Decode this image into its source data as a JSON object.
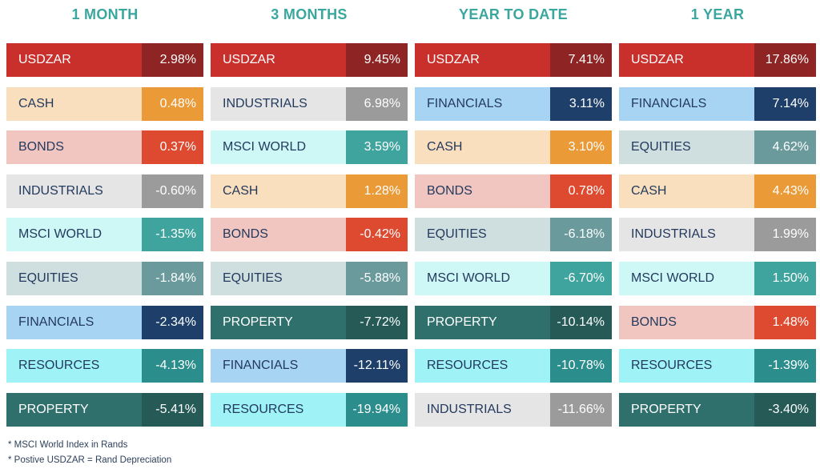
{
  "chart_data": {
    "type": "table",
    "palette": {
      "USDZAR": {
        "label_bg": "#c9302c",
        "label_fg": "#ffffff",
        "value_bg": "#8e2424",
        "value_fg": "#ffffff"
      },
      "CASH": {
        "label_bg": "#f9dfbd",
        "label_fg": "#233a5e",
        "value_bg": "#ea9a37",
        "value_fg": "#ffffff"
      },
      "BONDS": {
        "label_bg": "#f1c6c1",
        "label_fg": "#233a5e",
        "value_bg": "#de4a30",
        "value_fg": "#ffffff"
      },
      "INDUSTRIALS": {
        "label_bg": "#e5e5e5",
        "label_fg": "#233a5e",
        "value_bg": "#9b9b9b",
        "value_fg": "#ffffff"
      },
      "MSCI WORLD": {
        "label_bg": "#cef8f6",
        "label_fg": "#233a5e",
        "value_bg": "#3fa39e",
        "value_fg": "#ffffff"
      },
      "EQUITIES": {
        "label_bg": "#cfdfe0",
        "label_fg": "#233a5e",
        "value_bg": "#6a9a9c",
        "value_fg": "#ffffff"
      },
      "FINANCIALS": {
        "label_bg": "#a8d4f4",
        "label_fg": "#233a5e",
        "value_bg": "#1d3f6a",
        "value_fg": "#ffffff"
      },
      "RESOURCES": {
        "label_bg": "#9ff2f6",
        "label_fg": "#233a5e",
        "value_bg": "#2b8e8c",
        "value_fg": "#ffffff"
      },
      "PROPERTY": {
        "label_bg": "#2f706c",
        "label_fg": "#ffffff",
        "value_bg": "#255a57",
        "value_fg": "#ffffff"
      }
    },
    "columns": [
      {
        "title": "1 MONTH",
        "rows": [
          {
            "name": "USDZAR",
            "value": "2.98%"
          },
          {
            "name": "CASH",
            "value": "0.48%"
          },
          {
            "name": "BONDS",
            "value": "0.37%"
          },
          {
            "name": "INDUSTRIALS",
            "value": "-0.60%"
          },
          {
            "name": "MSCI WORLD",
            "value": "-1.35%"
          },
          {
            "name": "EQUITIES",
            "value": "-1.84%"
          },
          {
            "name": "FINANCIALS",
            "value": "-2.34%"
          },
          {
            "name": "RESOURCES",
            "value": "-4.13%"
          },
          {
            "name": "PROPERTY",
            "value": "-5.41%"
          }
        ]
      },
      {
        "title": "3 MONTHS",
        "rows": [
          {
            "name": "USDZAR",
            "value": "9.45%"
          },
          {
            "name": "INDUSTRIALS",
            "value": "6.98%"
          },
          {
            "name": "MSCI WORLD",
            "value": "3.59%"
          },
          {
            "name": "CASH",
            "value": "1.28%"
          },
          {
            "name": "BONDS",
            "value": "-0.42%"
          },
          {
            "name": "EQUITIES",
            "value": "-5.88%"
          },
          {
            "name": "PROPERTY",
            "value": "-7.72%"
          },
          {
            "name": "FINANCIALS",
            "value": "-12.11%"
          },
          {
            "name": "RESOURCES",
            "value": "-19.94%"
          }
        ]
      },
      {
        "title": "YEAR TO DATE",
        "rows": [
          {
            "name": "USDZAR",
            "value": "7.41%"
          },
          {
            "name": "FINANCIALS",
            "value": "3.11%"
          },
          {
            "name": "CASH",
            "value": "3.10%"
          },
          {
            "name": "BONDS",
            "value": "0.78%"
          },
          {
            "name": "EQUITIES",
            "value": "-6.18%"
          },
          {
            "name": "MSCI WORLD",
            "value": "-6.70%"
          },
          {
            "name": "PROPERTY",
            "value": "-10.14%"
          },
          {
            "name": "RESOURCES",
            "value": "-10.78%"
          },
          {
            "name": "INDUSTRIALS",
            "value": "-11.66%"
          }
        ]
      },
      {
        "title": "1 YEAR",
        "rows": [
          {
            "name": "USDZAR",
            "value": "17.86%"
          },
          {
            "name": "FINANCIALS",
            "value": "7.14%"
          },
          {
            "name": "EQUITIES",
            "value": "4.62%"
          },
          {
            "name": "CASH",
            "value": "4.43%"
          },
          {
            "name": "INDUSTRIALS",
            "value": "1.99%"
          },
          {
            "name": "MSCI WORLD",
            "value": "1.50%"
          },
          {
            "name": "BONDS",
            "value": "1.48%"
          },
          {
            "name": "RESOURCES",
            "value": "-1.39%"
          },
          {
            "name": "PROPERTY",
            "value": "-3.40%"
          }
        ]
      }
    ]
  },
  "footnotes": [
    "* MSCI World Index in  Rands",
    "* Postive USDZAR = Rand Depreciation"
  ]
}
